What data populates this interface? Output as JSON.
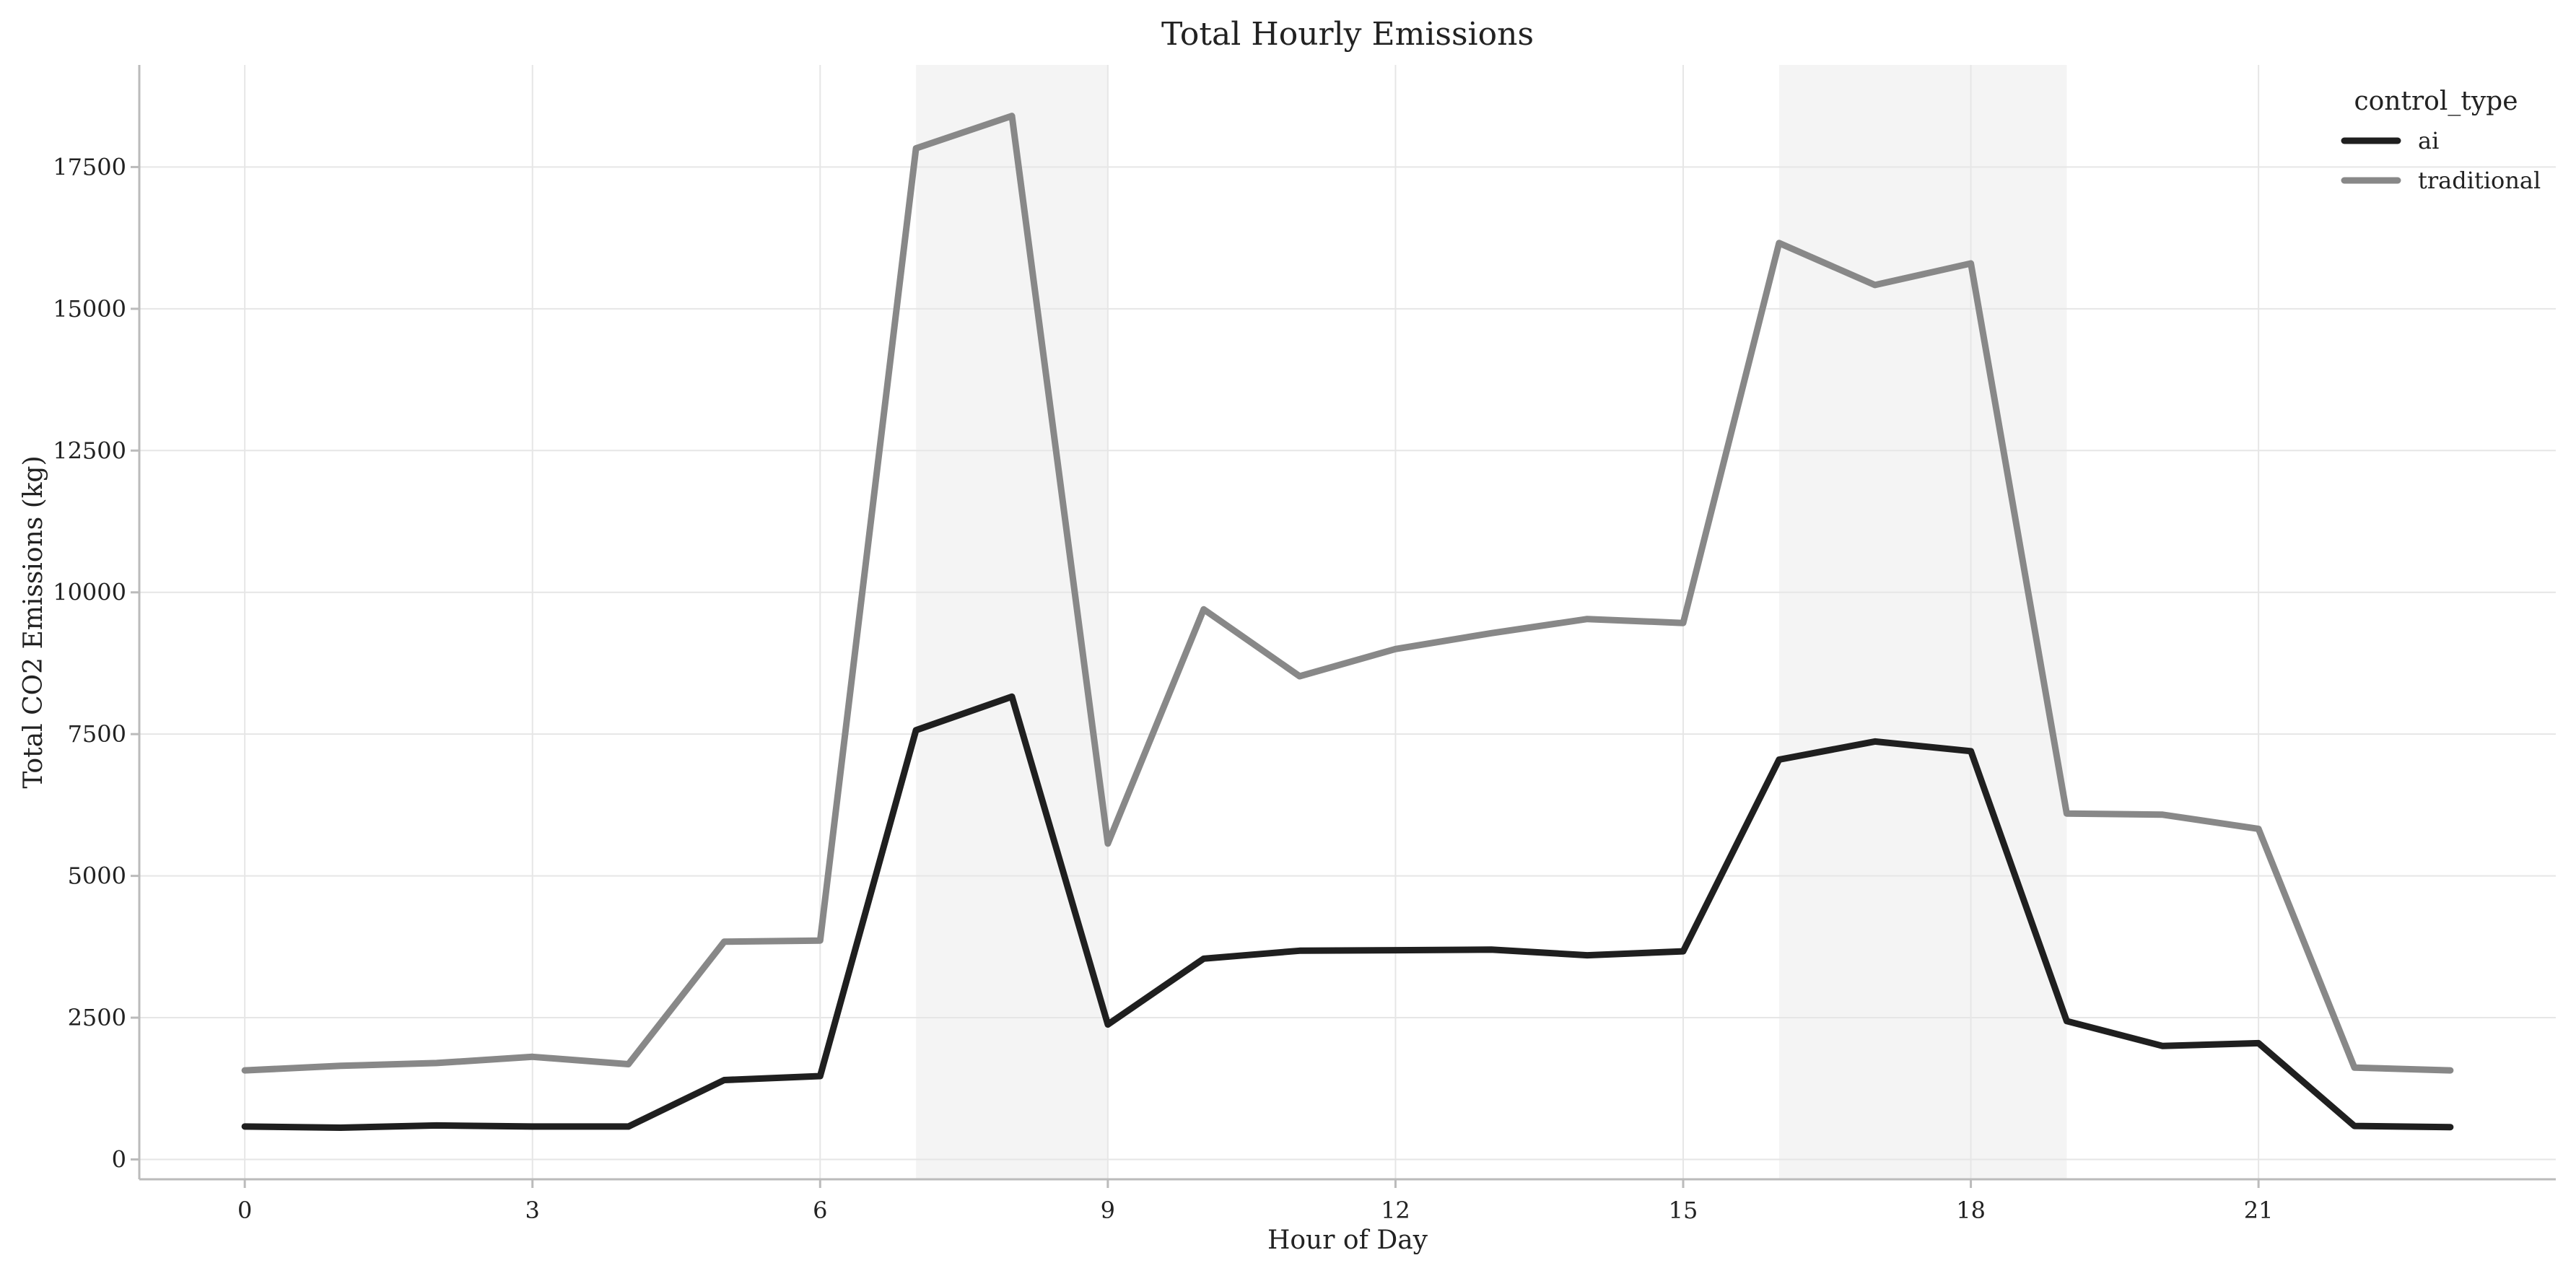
{
  "chart_data": {
    "type": "line",
    "title": "Total Hourly Emissions",
    "xlabel": "Hour of Day",
    "ylabel": "Total CO2 Emissions (kg)",
    "x": [
      0,
      1,
      2,
      3,
      4,
      5,
      6,
      7,
      8,
      9,
      10,
      11,
      12,
      13,
      14,
      15,
      16,
      17,
      18,
      19,
      20,
      21,
      22,
      23
    ],
    "xlim": [
      -1.1,
      24.1
    ],
    "ylim": [
      -350,
      19300
    ],
    "xticks": [
      0,
      3,
      6,
      9,
      12,
      15,
      18,
      21
    ],
    "xtick_labels": [
      "0",
      "3",
      "6",
      "9",
      "12",
      "15",
      "18",
      "21"
    ],
    "yticks": [
      0,
      2500,
      5000,
      7500,
      10000,
      12500,
      15000,
      17500
    ],
    "ytick_labels": [
      "0",
      "2500",
      "5000",
      "7500",
      "10000",
      "12500",
      "15000",
      "17500"
    ],
    "grid": true,
    "shaded_ranges": [
      [
        7,
        9
      ],
      [
        16,
        19
      ]
    ],
    "shade_color": "#f4f4f4",
    "legend": {
      "title": "control_type",
      "placement": "top-right"
    },
    "series": [
      {
        "name": "ai",
        "color": "#1f1f1f",
        "values": [
          580,
          560,
          600,
          580,
          580,
          1400,
          1470,
          7570,
          8160,
          2380,
          3540,
          3680,
          3690,
          3700,
          3600,
          3670,
          7050,
          7370,
          7200,
          2440,
          2000,
          2050,
          590,
          570
        ]
      },
      {
        "name": "traditional",
        "color": "#888888",
        "values": [
          1570,
          1650,
          1700,
          1810,
          1680,
          3840,
          3860,
          17830,
          18400,
          5570,
          9700,
          8520,
          9000,
          9280,
          9530,
          9460,
          16160,
          15420,
          15800,
          6100,
          6080,
          5830,
          1620,
          1570
        ]
      }
    ]
  }
}
